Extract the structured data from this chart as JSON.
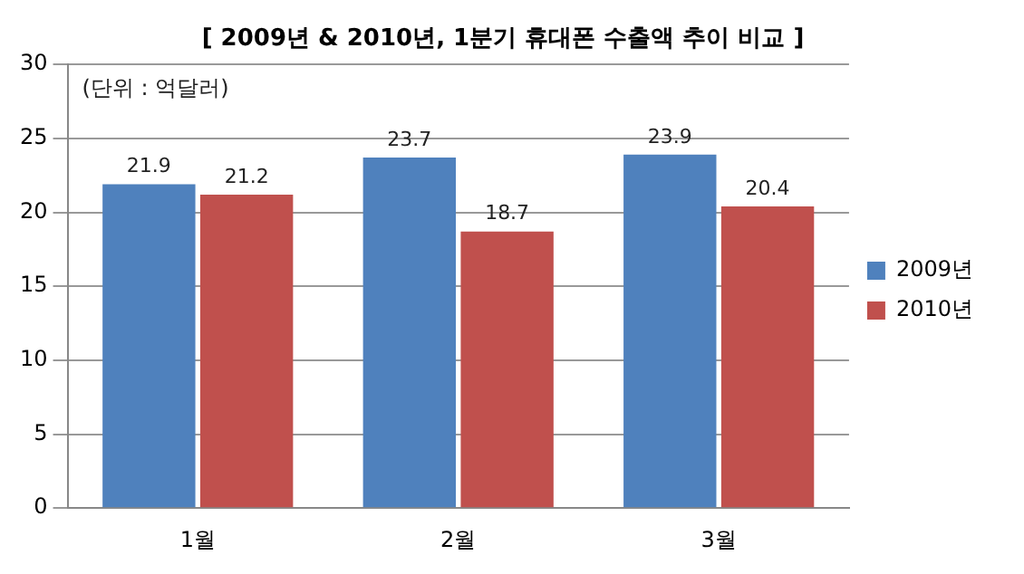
{
  "chart_data": {
    "type": "bar",
    "title": "[ 2009년 & 2010년, 1분기 휴대폰 수출액 추이 비교 ]",
    "categories": [
      "1월",
      "2월",
      "3월"
    ],
    "series": [
      {
        "name": "2009년",
        "color": "#4f81bd",
        "values": [
          21.9,
          23.7,
          23.9
        ]
      },
      {
        "name": "2010년",
        "color": "#c0504d",
        "values": [
          21.2,
          18.7,
          20.4
        ]
      }
    ],
    "ylim": [
      0,
      30
    ],
    "yticks": [
      0,
      5,
      10,
      15,
      20,
      25,
      30
    ],
    "grid": "y",
    "legend": "right",
    "data_labels": true,
    "annotations": [
      "(단위 : 억달러)"
    ]
  }
}
